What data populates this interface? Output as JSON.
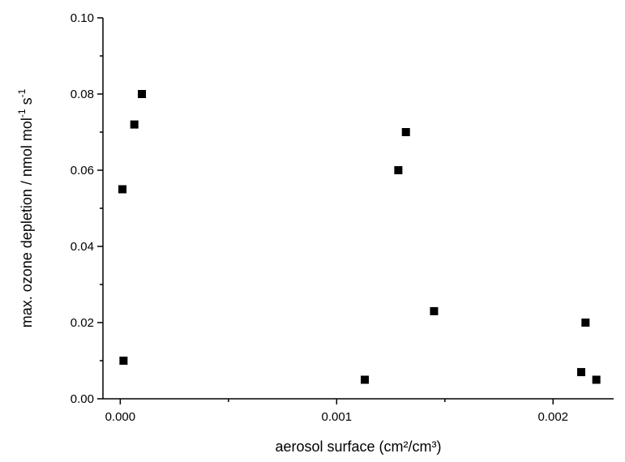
{
  "chart_data": {
    "type": "scatter",
    "title": "",
    "xlabel": "aerosol surface (cm²/cm³)",
    "ylabel": {
      "parts": [
        "max. ozone depletion / nmol mol",
        "-1",
        " s",
        "-1"
      ]
    },
    "xlim": [
      -8e-05,
      0.00228
    ],
    "ylim": [
      0.0,
      0.1
    ],
    "x_ticks": [
      {
        "value": 0.0,
        "label": "0.000"
      },
      {
        "value": 0.001,
        "label": "0.001"
      },
      {
        "value": 0.002,
        "label": "0.002"
      }
    ],
    "x_minor_ticks": [
      0.0005,
      0.0015
    ],
    "y_ticks": [
      {
        "value": 0.0,
        "label": "0.00"
      },
      {
        "value": 0.02,
        "label": "0.02"
      },
      {
        "value": 0.04,
        "label": "0.04"
      },
      {
        "value": 0.06,
        "label": "0.06"
      },
      {
        "value": 0.08,
        "label": "0.08"
      },
      {
        "value": 0.1,
        "label": "0.10"
      }
    ],
    "y_minor_ticks": [
      0.01,
      0.03,
      0.05,
      0.07,
      0.09
    ],
    "grid": false,
    "marker": "square",
    "marker_color": "#000000",
    "points": [
      {
        "x": 1.5e-05,
        "y": 0.01
      },
      {
        "x": 1e-05,
        "y": 0.055
      },
      {
        "x": 6.5e-05,
        "y": 0.072
      },
      {
        "x": 0.0001,
        "y": 0.08
      },
      {
        "x": 0.00113,
        "y": 0.005
      },
      {
        "x": 0.001285,
        "y": 0.06
      },
      {
        "x": 0.00132,
        "y": 0.07
      },
      {
        "x": 0.00145,
        "y": 0.023
      },
      {
        "x": 0.00213,
        "y": 0.007
      },
      {
        "x": 0.00215,
        "y": 0.02
      },
      {
        "x": 0.0022,
        "y": 0.005
      }
    ]
  }
}
